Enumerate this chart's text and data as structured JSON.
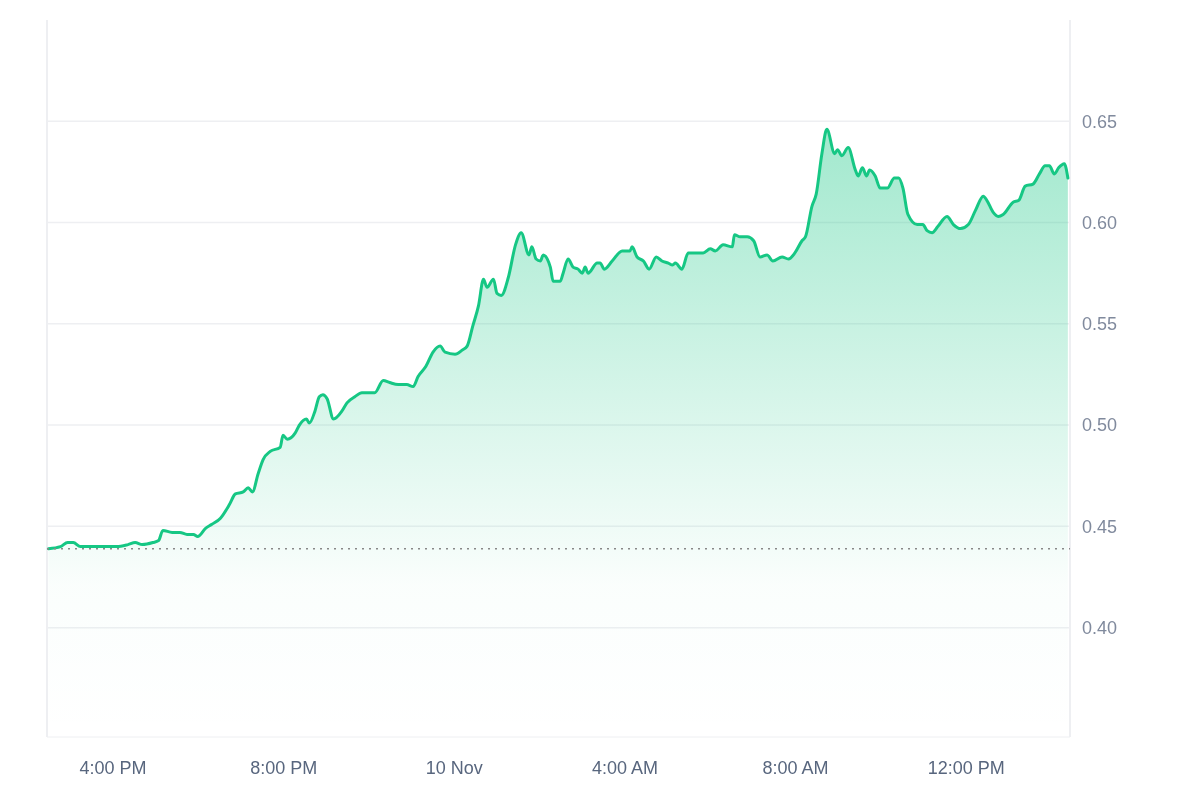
{
  "chart_data": {
    "type": "area",
    "x": [
      "--11-09T14:29",
      "--11-09T14:46",
      "--11-09T14:56",
      "--11-09T15:04",
      "--11-09T15:14",
      "--11-09T15:28",
      "--11-09T15:42",
      "--11-09T15:52",
      "--11-09T16:05",
      "--11-09T16:21",
      "--11-09T16:31",
      "--11-09T16:41",
      "--11-09T16:56",
      "--11-09T17:04",
      "--11-09T17:10",
      "--11-09T17:23",
      "--11-09T17:34",
      "--11-09T17:44",
      "--11-09T17:53",
      "--11-09T17:59",
      "--11-09T18:10",
      "--11-09T18:19",
      "--11-09T18:31",
      "--11-09T18:44",
      "--11-09T18:52",
      "--11-09T19:03",
      "--11-09T19:10",
      "--11-09T19:16",
      "--11-09T19:24",
      "--11-09T19:31",
      "--11-09T19:41",
      "--11-09T19:55",
      "--11-09T19:59",
      "--11-09T20:05",
      "--11-09T20:16",
      "--11-09T20:22",
      "--11-09T20:32",
      "--11-09T20:36",
      "--11-09T20:44",
      "--11-09T20:50",
      "--11-09T20:55",
      "--11-09T21:01",
      "--11-09T21:10",
      "--11-09T21:22",
      "--11-09T21:29",
      "--11-09T21:40",
      "--11-09T21:50",
      "--11-09T22:08",
      "--11-09T22:20",
      "--11-09T22:29",
      "--11-09T22:41",
      "--11-09T22:53",
      "--11-09T23:02",
      "--11-09T23:09",
      "--11-09T23:20",
      "--11-09T23:30",
      "--11-09T23:40",
      "--11-09T23:47",
      "--11-10T00:01",
      "--11-10T00:11",
      "--11-10T00:18",
      "--11-10T00:26",
      "--11-10T00:34",
      "--11-10T00:41",
      "--11-10T00:46",
      "--11-10T00:55",
      "--11-10T01:00",
      "--11-10T01:06",
      "--11-10T01:16",
      "--11-10T01:26",
      "--11-10T01:34",
      "--11-10T01:45",
      "--11-10T01:49",
      "--11-10T01:55",
      "--11-10T02:01",
      "--11-10T02:05",
      "--11-10T02:15",
      "--11-10T02:19",
      "--11-10T02:29",
      "--11-10T02:33",
      "--11-10T02:40",
      "--11-10T02:47",
      "--11-10T02:54",
      "--11-10T03:00",
      "--11-10T03:04",
      "--11-10T03:08",
      "--11-10T03:21",
      "--11-10T03:25",
      "--11-10T03:31",
      "--11-10T03:42",
      "--11-10T03:56",
      "--11-10T04:07",
      "--11-10T04:10",
      "--11-10T04:17",
      "--11-10T04:26",
      "--11-10T04:34",
      "--11-10T04:44",
      "--11-10T04:52",
      "--11-10T05:01",
      "--11-10T05:07",
      "--11-10T05:11",
      "--11-10T05:20",
      "--11-10T05:29",
      "--11-10T05:41",
      "--11-10T05:50",
      "--11-10T06:00",
      "--11-10T06:07",
      "--11-10T06:18",
      "--11-10T06:31",
      "--11-10T06:34",
      "--11-10T06:42",
      "--11-10T06:52",
      "--11-10T07:01",
      "--11-10T07:10",
      "--11-10T07:20",
      "--11-10T07:28",
      "--11-10T07:41",
      "--11-10T07:50",
      "--11-10T07:59",
      "--11-10T08:09",
      "--11-10T08:14",
      "--11-10T08:23",
      "--11-10T08:29",
      "--11-10T08:37",
      "--11-10T08:44",
      "--11-10T08:55",
      "--11-10T08:59",
      "--11-10T09:05",
      "--11-10T09:14",
      "--11-10T09:24",
      "--11-10T09:28",
      "--11-10T09:34",
      "--11-10T09:40",
      "--11-10T09:44",
      "--11-10T09:52",
      "--11-10T09:59",
      "--11-10T10:09",
      "--11-10T10:19",
      "--11-10T10:25",
      "--11-10T10:31",
      "--11-10T10:38",
      "--11-10T10:51",
      "--11-10T10:59",
      "--11-10T11:05",
      "--11-10T11:12",
      "--11-10T11:20",
      "--11-10T11:33",
      "--11-10T11:42",
      "--11-10T11:52",
      "--11-10T12:03",
      "--11-10T12:13",
      "--11-10T12:24",
      "--11-10T12:29",
      "--11-10T12:38",
      "--11-10T12:45",
      "--11-10T12:52",
      "--11-10T13:06",
      "--11-10T13:14",
      "--11-10T13:23",
      "--11-10T13:34",
      "--11-10T13:43",
      "--11-10T13:51",
      "--11-10T13:57",
      "--11-10T14:04",
      "--11-10T14:10",
      "--11-10T14:18",
      "--11-10T14:23"
    ],
    "series": [
      {
        "color": "#16c784",
        "values": [
          0.439,
          0.44,
          0.442,
          0.442,
          0.44,
          0.44,
          0.44,
          0.44,
          0.44,
          0.441,
          0.442,
          0.441,
          0.442,
          0.443,
          0.448,
          0.447,
          0.447,
          0.446,
          0.446,
          0.445,
          0.449,
          0.451,
          0.454,
          0.461,
          0.466,
          0.467,
          0.469,
          0.467,
          0.476,
          0.483,
          0.487,
          0.489,
          0.495,
          0.493,
          0.496,
          0.5,
          0.503,
          0.501,
          0.507,
          0.514,
          0.515,
          0.513,
          0.503,
          0.507,
          0.511,
          0.514,
          0.516,
          0.516,
          0.522,
          0.521,
          0.52,
          0.52,
          0.519,
          0.524,
          0.529,
          0.536,
          0.539,
          0.536,
          0.535,
          0.537,
          0.539,
          0.549,
          0.559,
          0.572,
          0.568,
          0.572,
          0.565,
          0.564,
          0.573,
          0.589,
          0.595,
          0.584,
          0.588,
          0.582,
          0.581,
          0.584,
          0.578,
          0.571,
          0.571,
          0.575,
          0.582,
          0.578,
          0.577,
          0.575,
          0.578,
          0.575,
          0.58,
          0.58,
          0.577,
          0.581,
          0.586,
          0.586,
          0.588,
          0.583,
          0.581,
          0.577,
          0.583,
          0.581,
          0.58,
          0.579,
          0.58,
          0.577,
          0.585,
          0.585,
          0.585,
          0.587,
          0.586,
          0.589,
          0.588,
          0.594,
          0.593,
          0.593,
          0.591,
          0.583,
          0.584,
          0.581,
          0.583,
          0.582,
          0.585,
          0.591,
          0.593,
          0.608,
          0.614,
          0.634,
          0.646,
          0.634,
          0.636,
          0.633,
          0.637,
          0.626,
          0.623,
          0.627,
          0.623,
          0.626,
          0.623,
          0.617,
          0.617,
          0.622,
          0.622,
          0.617,
          0.604,
          0.599,
          0.599,
          0.596,
          0.595,
          0.598,
          0.603,
          0.599,
          0.597,
          0.599,
          0.606,
          0.613,
          0.611,
          0.605,
          0.603,
          0.604,
          0.61,
          0.611,
          0.618,
          0.619,
          0.624,
          0.628,
          0.628,
          0.624,
          0.627,
          0.629,
          0.622
        ]
      }
    ],
    "xlim": [
      "--11-09T14:27",
      "--11-10T14:26"
    ],
    "xticks": [
      {
        "value": "--11-09T16:00",
        "label": "4:00 PM"
      },
      {
        "value": "--11-09T20:00",
        "label": "8:00 PM"
      },
      {
        "value": "--11-10T00:00",
        "label": "10 Nov"
      },
      {
        "value": "--11-10T04:00",
        "label": "4:00 AM"
      },
      {
        "value": "--11-10T08:00",
        "label": "8:00 AM"
      },
      {
        "value": "--11-10T12:00",
        "label": "12:00 PM"
      }
    ],
    "ylim": [
      0.346,
      0.7
    ],
    "yticks": [
      {
        "value": 0.4,
        "label": "0.40"
      },
      {
        "value": 0.45,
        "label": "0.45"
      },
      {
        "value": 0.5,
        "label": "0.50"
      },
      {
        "value": 0.55,
        "label": "0.55"
      },
      {
        "value": 0.6,
        "label": "0.60"
      },
      {
        "value": 0.65,
        "label": "0.65"
      }
    ],
    "grid": "y",
    "ref_lines": [
      {
        "axis": "y",
        "value": 0.439,
        "color": "#888888",
        "line_style": "dotted"
      }
    ]
  }
}
